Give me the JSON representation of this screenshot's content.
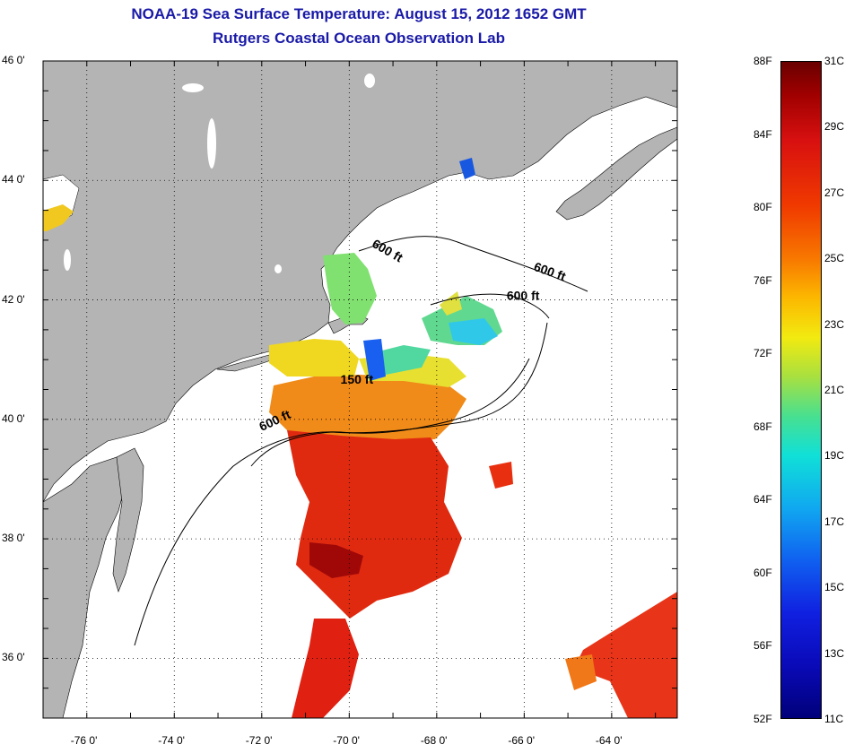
{
  "title": {
    "line1": "NOAA-19 Sea Surface Temperature:  August 15, 2012 1652 GMT",
    "line2": "Rutgers Coastal Ocean Observation Lab"
  },
  "lat_ticks": [
    {
      "value": 46,
      "label": "46 0'"
    },
    {
      "value": 44,
      "label": "44 0'"
    },
    {
      "value": 42,
      "label": "42 0'"
    },
    {
      "value": 40,
      "label": "40 0'"
    },
    {
      "value": 38,
      "label": "38 0'"
    },
    {
      "value": 36,
      "label": "36 0'"
    }
  ],
  "lon_ticks": [
    {
      "value": -76,
      "label": "-76 0'"
    },
    {
      "value": -74,
      "label": "-74 0'"
    },
    {
      "value": -72,
      "label": "-72 0'"
    },
    {
      "value": -70,
      "label": "-70 0'"
    },
    {
      "value": -68,
      "label": "-68 0'"
    },
    {
      "value": -66,
      "label": "-66 0'"
    },
    {
      "value": -64,
      "label": "-64 0'"
    }
  ],
  "map_extent": {
    "lon_min": -77.0,
    "lon_max": -62.5,
    "lat_min": 35.0,
    "lat_max": 46.0
  },
  "depth_labels": [
    {
      "text": "600 ft",
      "lon": -69.5,
      "lat": 42.9,
      "rotate": 30
    },
    {
      "text": "600 ft",
      "lon": -65.8,
      "lat": 42.5,
      "rotate": 20
    },
    {
      "text": "600 ft",
      "lon": -66.4,
      "lat": 42.0,
      "rotate": 0
    },
    {
      "text": "150 ft",
      "lon": -70.2,
      "lat": 40.6,
      "rotate": 0
    },
    {
      "text": "600 ft",
      "lon": -72.0,
      "lat": 39.8,
      "rotate": -25
    }
  ],
  "colorbar": {
    "fahrenheit_labels": [
      "88F",
      "84F",
      "80F",
      "76F",
      "72F",
      "68F",
      "64F",
      "60F",
      "56F",
      "52F"
    ],
    "celsius_labels": [
      "31C",
      "29C",
      "27C",
      "25C",
      "23C",
      "21C",
      "19C",
      "17C",
      "15C",
      "13C",
      "11C"
    ],
    "fahrenheit_range": [
      52,
      88
    ],
    "celsius_range": [
      11,
      31
    ]
  },
  "colors": {
    "land": "#b4b4b4",
    "title": "#1a1aa8",
    "warm_red": "#e02010",
    "dark_red": "#900000",
    "orange": "#f07818",
    "yellow": "#f0e020",
    "green": "#70e060",
    "cyan": "#30d8e0",
    "blue": "#1050f0"
  }
}
